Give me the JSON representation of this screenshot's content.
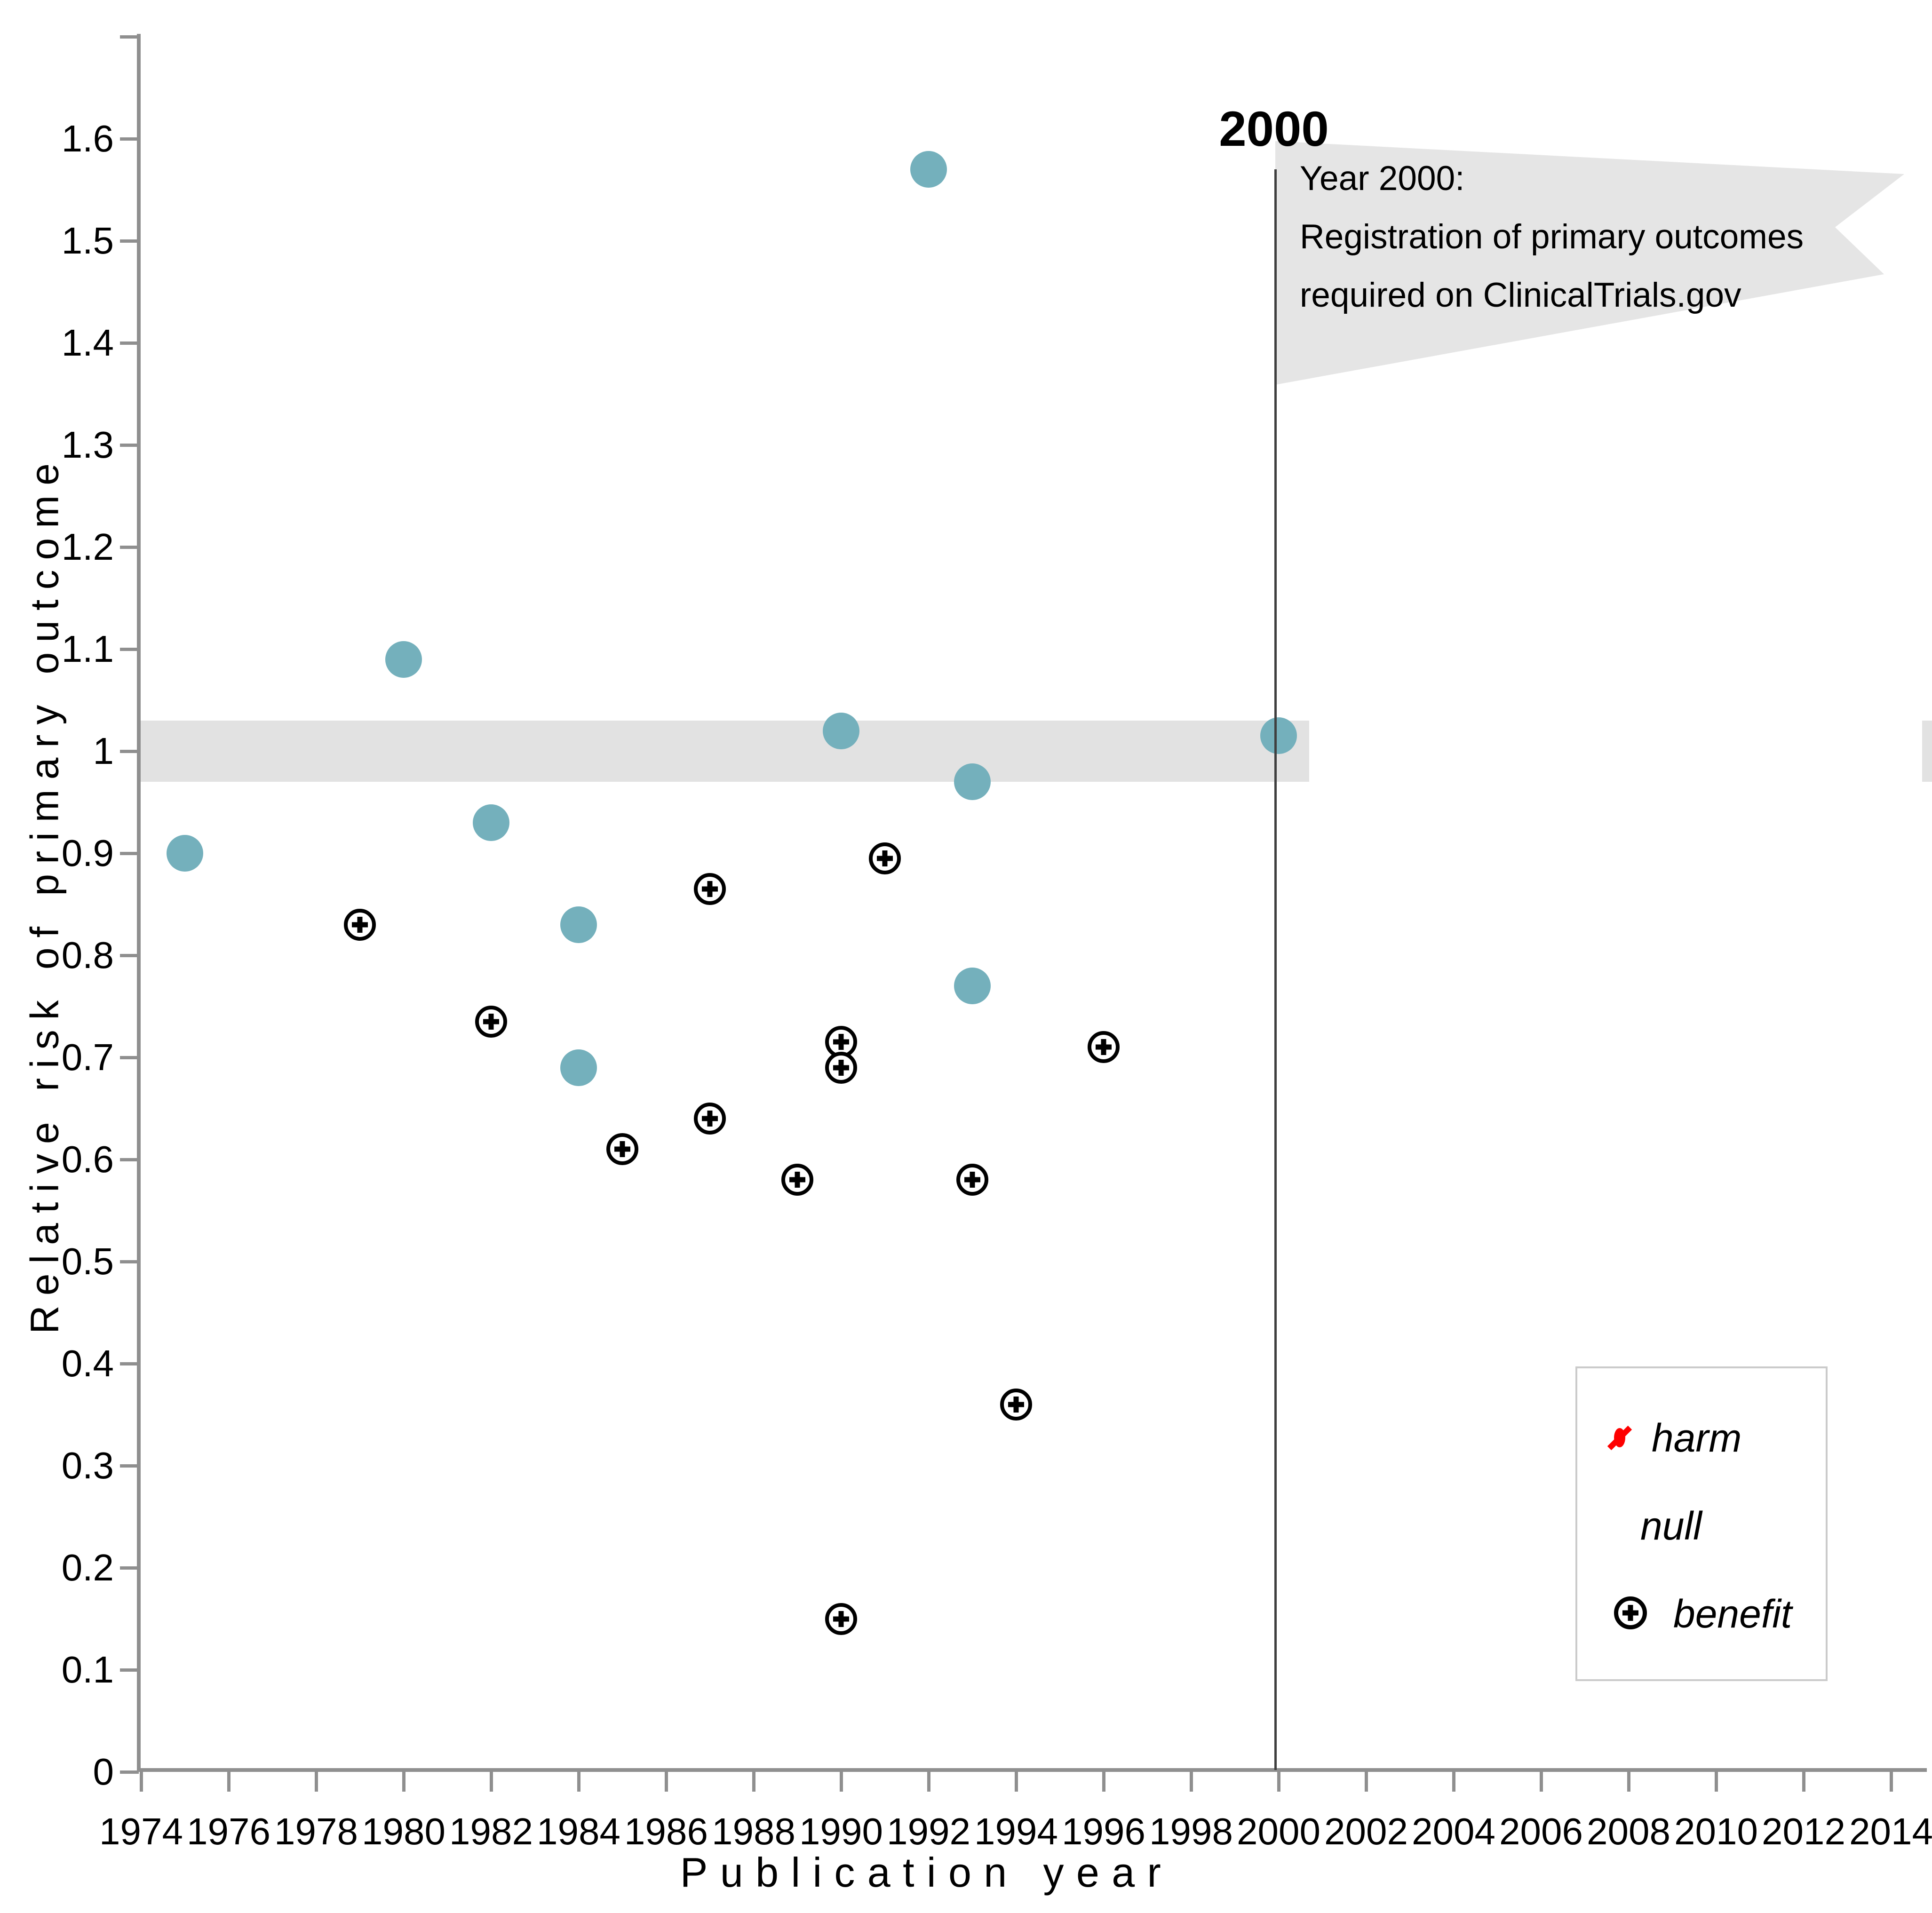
{
  "figure": {
    "event_label": "2000",
    "flag_lines": [
      "Year 2000:",
      "Registration of primary outcomes",
      "required on ClinicalTrials.gov"
    ],
    "legend": [
      {
        "key": "harm",
        "label": "harm",
        "color": "#fe0000"
      },
      {
        "key": "null",
        "label": "null",
        "color": "#74b0bc"
      },
      {
        "key": "benefit",
        "label": "benefit",
        "color": "#000000"
      }
    ]
  },
  "chart_data": {
    "type": "scatter",
    "title": "",
    "xlabel": "Publication year",
    "ylabel": "Relative risk of primary outcome",
    "xlim": [
      1974,
      2014
    ],
    "ylim": [
      0,
      1.7
    ],
    "grid": false,
    "legend_position": "bottom-right",
    "x_ticks": [
      1974,
      1976,
      1978,
      1980,
      1982,
      1984,
      1986,
      1988,
      1990,
      1992,
      1994,
      1996,
      1998,
      2000,
      2002,
      2004,
      2006,
      2008,
      2010,
      2012,
      2014
    ],
    "y_ticks": [
      0,
      0.1,
      0.2,
      0.3,
      0.4,
      0.5,
      0.6,
      0.7,
      0.8,
      0.9,
      1,
      1.1,
      1.2,
      1.3,
      1.4,
      1.5,
      1.6,
      1.7
    ],
    "y_tick_labels": [
      "0",
      "0.1",
      "0.2",
      "0.3",
      "0.4",
      "0.5",
      "0.6",
      "0.7",
      "0.8",
      "0.9",
      "1",
      "1.1",
      "1.2",
      "1.3",
      "1.4",
      "1.5",
      "1.6",
      ""
    ],
    "reference_band": {
      "y_from": 0.97,
      "y_to": 1.03,
      "x_from": 1974,
      "x_to": 2000.7,
      "color": "#e2e2e2",
      "right_edge_stub": true
    },
    "event_line": {
      "x": 2000,
      "label": "2000"
    },
    "annotation": "Year 2000: Registration of primary outcomes required on ClinicalTrials.gov",
    "series": [
      {
        "name": "harm",
        "marker": "prohibition-circle",
        "color": "#fe0000",
        "points": []
      },
      {
        "name": "null",
        "marker": "filled-circle",
        "color": "#74b0bc",
        "points": [
          [
            1975,
            0.9
          ],
          [
            1980,
            1.09
          ],
          [
            1982,
            0.93
          ],
          [
            1984,
            0.83
          ],
          [
            1984,
            0.69
          ],
          [
            1990,
            1.02
          ],
          [
            1992,
            1.57
          ],
          [
            1993,
            0.97
          ],
          [
            1993,
            0.77
          ],
          [
            2000,
            1.015
          ]
        ]
      },
      {
        "name": "benefit",
        "marker": "circle-plus",
        "color": "#000000",
        "points": [
          [
            1979,
            0.83
          ],
          [
            1982,
            0.735
          ],
          [
            1985,
            0.61
          ],
          [
            1987,
            0.865
          ],
          [
            1987,
            0.64
          ],
          [
            1989,
            0.58
          ],
          [
            1990,
            0.715
          ],
          [
            1990,
            0.69
          ],
          [
            1990,
            0.15
          ],
          [
            1991,
            0.895
          ],
          [
            1993,
            0.58
          ],
          [
            1994,
            0.36
          ],
          [
            1996,
            0.71
          ]
        ]
      }
    ]
  }
}
